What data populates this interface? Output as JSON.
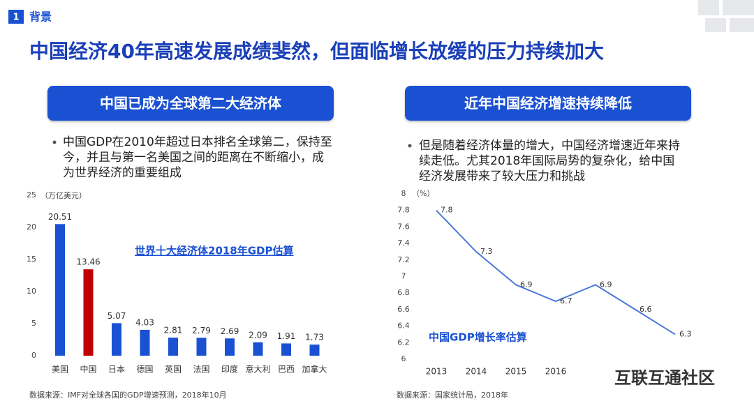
{
  "header": {
    "number": "1",
    "section": "背景"
  },
  "title": "中国经济40年高速发展成绩斐然，但面临增长放缓的压力持续加大",
  "panels": [
    {
      "heading": "中国已成为全球第二大经济体",
      "bullet": "中国GDP在2010年超过日本排名全球第二，保持至今，并且与第一名美国之间的距离在不断缩小，成为世界经济的重要组成",
      "source": "数据来源：IMF对全球各国的GDP增速预测，2018年10月"
    },
    {
      "heading": "近年中国经济增速持续降低",
      "bullet": "但是随着经济体量的增大，中国经济增速近年来持续走低。尤其2018年国际局势的复杂化，给中国经济发展带来了较大压力和挑战",
      "source": "数据来源：国家统计局，2018年"
    }
  ],
  "chart_data": [
    {
      "type": "bar",
      "annotation": "世界十大经济体2018年GDP估算",
      "y_unit": "（万亿美元）",
      "categories": [
        "美国",
        "中国",
        "日本",
        "德国",
        "英国",
        "法国",
        "印度",
        "意大利",
        "巴西",
        "加拿大"
      ],
      "values": [
        20.51,
        13.46,
        5.07,
        4.03,
        2.81,
        2.79,
        2.69,
        2.09,
        1.91,
        1.73
      ],
      "colors": [
        "#1a50d2",
        "#c00000",
        "#1a50d2",
        "#1a50d2",
        "#1a50d2",
        "#1a50d2",
        "#1a50d2",
        "#1a50d2",
        "#1a50d2",
        "#1a50d2"
      ],
      "ylim": [
        0,
        25
      ],
      "yticks": [
        0,
        5,
        10,
        15,
        20,
        25
      ]
    },
    {
      "type": "line",
      "annotation": "中国GDP增长率估算",
      "y_unit": "（%）",
      "categories": [
        "2013",
        "2014",
        "2015",
        "2016",
        null,
        null,
        null
      ],
      "values": [
        7.8,
        7.3,
        6.9,
        6.7,
        6.9,
        6.6,
        6.3
      ],
      "color": "#4a78d8",
      "ylim": [
        6,
        8
      ],
      "yticks": [
        6,
        6.2,
        6.4,
        6.6,
        6.8,
        7,
        7.2,
        7.4,
        7.6,
        7.8,
        8
      ]
    }
  ],
  "watermark": "互联互通社区"
}
